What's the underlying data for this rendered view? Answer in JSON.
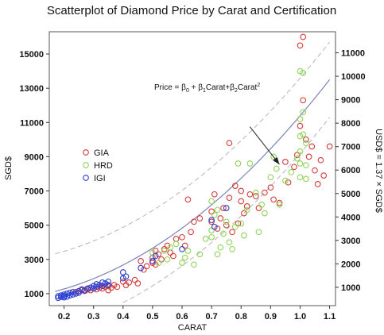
{
  "chart_data": {
    "type": "scatter",
    "title": "Scatterplot of Diamond Price by Carat and Certification",
    "xlabel": "CARAT",
    "ylabel": "SGD$",
    "ylabel_right": "USD$ = 1.37 × SGD$",
    "xlim": [
      0.15,
      1.12
    ],
    "ylim": [
      300,
      16300
    ],
    "xticks": [
      "0.2",
      "0.3",
      "0.4",
      "0.5",
      "0.6",
      "0.7",
      "0.8",
      "0.9",
      "1.0",
      "1.1"
    ],
    "yticks_left": [
      "1000",
      "3000",
      "5000",
      "7000",
      "9000",
      "11000",
      "13000",
      "15000"
    ],
    "yticks_right": [
      "1000",
      "2000",
      "3000",
      "4000",
      "5000",
      "6000",
      "7000",
      "8000",
      "9000",
      "10000",
      "11000"
    ],
    "right_axis_factor": 1.37,
    "legend": {
      "position": "left-middle",
      "entries": [
        "GIA",
        "HRD",
        "IGI"
      ]
    },
    "colors": {
      "GIA": "#d63a3a",
      "HRD": "#8fd45a",
      "IGI": "#2b3fcf",
      "fit": "#7b84b8",
      "band": "#b5b5b5"
    },
    "annotation": {
      "base": "Price = β",
      "sub0": "0",
      "mid1": " + β",
      "sub1": "1",
      "mid2": "Carat+β",
      "sub2": "2",
      "mid3": "Carat",
      "sup": "2",
      "arrow_from": [
        0.83,
        10750
      ],
      "arrow_to": [
        0.93,
        8550
      ]
    },
    "fit": {
      "b0": 622,
      "b1": 1370,
      "b2": 9400,
      "band_offset": 2200
    },
    "series": [
      {
        "name": "GIA",
        "points": [
          [
            0.24,
            1100
          ],
          [
            0.25,
            1150
          ],
          [
            0.26,
            1200
          ],
          [
            0.27,
            1150
          ],
          [
            0.28,
            1250
          ],
          [
            0.29,
            1200
          ],
          [
            0.3,
            1300
          ],
          [
            0.31,
            1250
          ],
          [
            0.32,
            1350
          ],
          [
            0.33,
            1300
          ],
          [
            0.34,
            1400
          ],
          [
            0.35,
            1450
          ],
          [
            0.35,
            1200
          ],
          [
            0.36,
            1350
          ],
          [
            0.37,
            1500
          ],
          [
            0.38,
            1400
          ],
          [
            0.4,
            1700
          ],
          [
            0.41,
            1500
          ],
          [
            0.42,
            1650
          ],
          [
            0.44,
            1800
          ],
          [
            0.45,
            1600
          ],
          [
            0.46,
            2900
          ],
          [
            0.47,
            2400
          ],
          [
            0.48,
            2600
          ],
          [
            0.5,
            2800
          ],
          [
            0.5,
            3100
          ],
          [
            0.51,
            3500
          ],
          [
            0.51,
            2700
          ],
          [
            0.52,
            3300
          ],
          [
            0.53,
            3000
          ],
          [
            0.54,
            3600
          ],
          [
            0.55,
            3800
          ],
          [
            0.56,
            3400
          ],
          [
            0.57,
            3200
          ],
          [
            0.58,
            4200
          ],
          [
            0.6,
            4300
          ],
          [
            0.61,
            3800
          ],
          [
            0.62,
            6500
          ],
          [
            0.63,
            4600
          ],
          [
            0.64,
            5200
          ],
          [
            0.66,
            5400
          ],
          [
            0.7,
            5800
          ],
          [
            0.7,
            5200
          ],
          [
            0.71,
            6800
          ],
          [
            0.72,
            4800
          ],
          [
            0.73,
            5400
          ],
          [
            0.74,
            6000
          ],
          [
            0.75,
            5000
          ],
          [
            0.76,
            9800
          ],
          [
            0.76,
            6600
          ],
          [
            0.77,
            4600
          ],
          [
            0.78,
            7300
          ],
          [
            0.79,
            5100
          ],
          [
            0.8,
            6400
          ],
          [
            0.8,
            7000
          ],
          [
            0.81,
            5700
          ],
          [
            0.82,
            6100
          ],
          [
            0.83,
            6800
          ],
          [
            0.85,
            6700
          ],
          [
            0.86,
            6000
          ],
          [
            0.88,
            6900
          ],
          [
            0.9,
            7200
          ],
          [
            0.91,
            6500
          ],
          [
            0.93,
            6300
          ],
          [
            0.95,
            8700
          ],
          [
            0.96,
            7500
          ],
          [
            0.98,
            8400
          ],
          [
            0.99,
            9100
          ],
          [
            1.0,
            10800
          ],
          [
            1.0,
            15500
          ],
          [
            1.01,
            16000
          ],
          [
            1.01,
            12300
          ],
          [
            1.02,
            10000
          ],
          [
            1.03,
            9000
          ],
          [
            1.04,
            9600
          ],
          [
            1.05,
            8200
          ],
          [
            1.06,
            7400
          ],
          [
            1.07,
            8800
          ],
          [
            1.08,
            7900
          ],
          [
            1.1,
            9600
          ]
        ]
      },
      {
        "name": "HRD",
        "points": [
          [
            0.5,
            3400
          ],
          [
            0.52,
            2800
          ],
          [
            0.54,
            3500
          ],
          [
            0.55,
            3000
          ],
          [
            0.56,
            3700
          ],
          [
            0.58,
            3900
          ],
          [
            0.6,
            2800
          ],
          [
            0.61,
            3100
          ],
          [
            0.62,
            3500
          ],
          [
            0.64,
            2700
          ],
          [
            0.66,
            3300
          ],
          [
            0.68,
            4200
          ],
          [
            0.7,
            4300
          ],
          [
            0.7,
            4700
          ],
          [
            0.7,
            6400
          ],
          [
            0.71,
            5600
          ],
          [
            0.72,
            5900
          ],
          [
            0.72,
            3300
          ],
          [
            0.73,
            3700
          ],
          [
            0.74,
            4500
          ],
          [
            0.75,
            5200
          ],
          [
            0.76,
            4000
          ],
          [
            0.77,
            3600
          ],
          [
            0.78,
            4900
          ],
          [
            0.79,
            8600
          ],
          [
            0.8,
            5100
          ],
          [
            0.81,
            4400
          ],
          [
            0.82,
            5900
          ],
          [
            0.83,
            8600
          ],
          [
            0.85,
            6900
          ],
          [
            0.86,
            4600
          ],
          [
            0.87,
            6200
          ],
          [
            0.88,
            5700
          ],
          [
            0.9,
            7800
          ],
          [
            0.91,
            9000
          ],
          [
            0.92,
            8300
          ],
          [
            0.93,
            6200
          ],
          [
            0.95,
            7600
          ],
          [
            0.97,
            8100
          ],
          [
            0.99,
            8900
          ],
          [
            1.0,
            7800
          ],
          [
            1.0,
            8600
          ],
          [
            1.0,
            9300
          ],
          [
            1.0,
            10200
          ],
          [
            1.0,
            11200
          ],
          [
            1.0,
            14000
          ],
          [
            1.01,
            13900
          ],
          [
            1.01,
            11600
          ],
          [
            1.01,
            10300
          ],
          [
            1.02,
            9800
          ],
          [
            1.02,
            8500
          ],
          [
            1.02,
            7700
          ]
        ]
      },
      {
        "name": "IGI",
        "points": [
          [
            0.18,
            750
          ],
          [
            0.18,
            850
          ],
          [
            0.19,
            800
          ],
          [
            0.19,
            900
          ],
          [
            0.2,
            780
          ],
          [
            0.2,
            860
          ],
          [
            0.2,
            950
          ],
          [
            0.21,
            820
          ],
          [
            0.21,
            1000
          ],
          [
            0.22,
            900
          ],
          [
            0.22,
            1050
          ],
          [
            0.23,
            950
          ],
          [
            0.23,
            1100
          ],
          [
            0.24,
            1000
          ],
          [
            0.25,
            1150
          ],
          [
            0.25,
            1050
          ],
          [
            0.26,
            1250
          ],
          [
            0.27,
            1200
          ],
          [
            0.28,
            1300
          ],
          [
            0.29,
            1350
          ],
          [
            0.3,
            1300
          ],
          [
            0.3,
            1450
          ],
          [
            0.31,
            1400
          ],
          [
            0.31,
            1550
          ],
          [
            0.32,
            1500
          ],
          [
            0.33,
            1450
          ],
          [
            0.33,
            1650
          ],
          [
            0.34,
            1600
          ],
          [
            0.35,
            1700
          ],
          [
            0.35,
            1500
          ],
          [
            0.4,
            1900
          ],
          [
            0.4,
            2250
          ],
          [
            0.41,
            2000
          ],
          [
            0.46,
            2500
          ],
          [
            0.5,
            2900
          ],
          [
            0.51,
            3200
          ],
          [
            0.6,
            3600
          ],
          [
            0.7,
            5300
          ],
          [
            0.71,
            4900
          ],
          [
            0.75,
            6000
          ]
        ]
      }
    ]
  }
}
